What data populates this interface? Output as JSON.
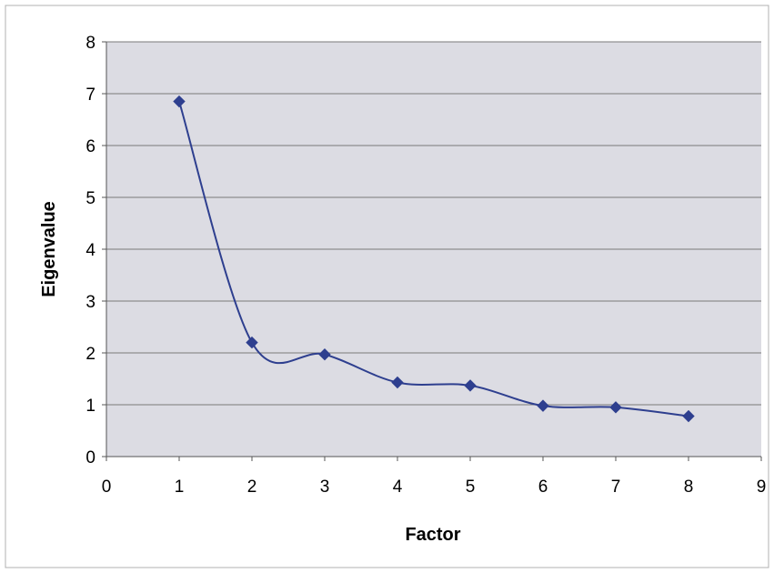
{
  "chart_data": {
    "type": "scatter",
    "title": "",
    "xlabel": "Factor",
    "ylabel": "Eigenvalue",
    "xlim": [
      0,
      9
    ],
    "ylim": [
      0,
      8
    ],
    "xticks": [
      0,
      1,
      2,
      3,
      4,
      5,
      6,
      7,
      8,
      9
    ],
    "yticks": [
      0,
      1,
      2,
      3,
      4,
      5,
      6,
      7,
      8
    ],
    "grid": "horizontal",
    "legend": "none",
    "smoothed_line": true,
    "marker": "diamond",
    "series": [
      {
        "x": [
          1,
          2,
          3,
          4,
          5,
          6,
          7,
          8
        ],
        "y": [
          6.85,
          2.2,
          1.97,
          1.43,
          1.37,
          0.98,
          0.95,
          0.78
        ]
      }
    ],
    "colors": {
      "series": "#2e3f8f",
      "plot_area": "#dcdce3",
      "gridline": "#7a7a7a",
      "axis": "#555555",
      "frame": "#b0b0b0"
    }
  }
}
